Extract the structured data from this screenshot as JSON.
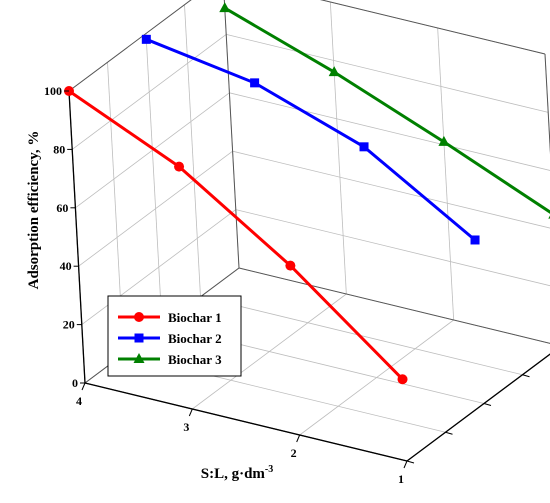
{
  "chart_data": {
    "type": "line",
    "projection": "3d",
    "title": "",
    "ylabel": "Adsorption efficiency, %",
    "xlabel_base": "S:L, g·dm",
    "xlabel_sup": "-3",
    "x_ticks": [
      "4",
      "3",
      "2",
      "1"
    ],
    "y_ticks": [
      "0",
      "20",
      "40",
      "60",
      "80",
      "100"
    ],
    "xlim": [
      1,
      4
    ],
    "ylim": [
      0,
      100
    ],
    "grid": true,
    "legend_position": "bottom-left",
    "series": [
      {
        "name": "Biochar 1",
        "color": "#ff0000",
        "marker": "circle",
        "x": [
          4,
          3,
          2,
          1
        ],
        "values": [
          100,
          83,
          58,
          28
        ]
      },
      {
        "name": "Biochar 2",
        "color": "#0000ff",
        "marker": "square",
        "x": [
          4,
          3,
          2,
          1
        ],
        "values": [
          98,
          92,
          79,
          56
        ]
      },
      {
        "name": "Biochar 3",
        "color": "#008000",
        "marker": "triangle",
        "x": [
          4,
          3,
          2,
          1
        ],
        "values": [
          89,
          76,
          61,
          45
        ]
      }
    ]
  }
}
